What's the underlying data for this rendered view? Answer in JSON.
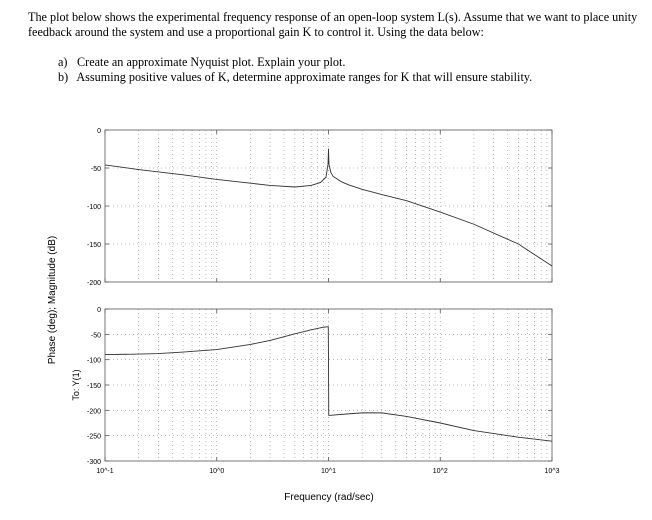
{
  "problem": {
    "intro": "The plot below shows the experimental frequency response of an open-loop system L(s).  Assume that we want to place unity feedback around the system and use a proportional gain K to control it.  Using the data below:",
    "items": [
      {
        "label": "a)",
        "text": "Create an approximate Nyquist plot.  Explain your plot."
      },
      {
        "label": "b)",
        "text": "Assuming positive values of K, determine approximate ranges for K that will ensure stability."
      }
    ]
  },
  "chart_data": {
    "type": "line",
    "title": "",
    "xlabel": "Frequency (rad/sec)",
    "ylabel": "Phase (deg); Magnitude (dB)",
    "channel_label": "To: Y(1)",
    "xscale": "log",
    "xlim": [
      0.1,
      1000
    ],
    "x_ticks": [
      "10^-1",
      "10^0",
      "10^1",
      "10^2",
      "10^3"
    ],
    "grid": true,
    "line_color": "#333333",
    "panels": [
      {
        "name": "magnitude",
        "ylim": [
          -200,
          0
        ],
        "y_ticks": [
          "0",
          "-50",
          "-100",
          "-150",
          "-200"
        ],
        "x": [
          0.1,
          0.2,
          0.5,
          1,
          2,
          3,
          5,
          7,
          8.5,
          9.5,
          9.9,
          10,
          10.1,
          10.5,
          11,
          13,
          15,
          20,
          30,
          50,
          100,
          200,
          500,
          1000
        ],
        "y": [
          -46,
          -52,
          -59,
          -65,
          -70,
          -73,
          -75,
          -73,
          -69,
          -62,
          -45,
          -25,
          -45,
          -56,
          -61,
          -68,
          -72,
          -78,
          -85,
          -93,
          -108,
          -124,
          -150,
          -179
        ]
      },
      {
        "name": "phase",
        "ylim": [
          -300,
          0
        ],
        "y_ticks": [
          "0",
          "-50",
          "-100",
          "-150",
          "-200",
          "-250",
          "-300"
        ],
        "x": [
          0.1,
          0.2,
          0.3,
          0.5,
          1,
          2,
          3,
          5,
          7,
          9,
          9.95,
          10,
          10.05,
          15,
          20,
          30,
          50,
          100,
          200,
          500,
          1000
        ],
        "y": [
          -90,
          -89,
          -88,
          -85,
          -80,
          -70,
          -62,
          -49,
          -41,
          -36,
          -35,
          -100,
          -210,
          -207,
          -205,
          -205,
          -212,
          -225,
          -240,
          -253,
          -261
        ]
      }
    ]
  }
}
